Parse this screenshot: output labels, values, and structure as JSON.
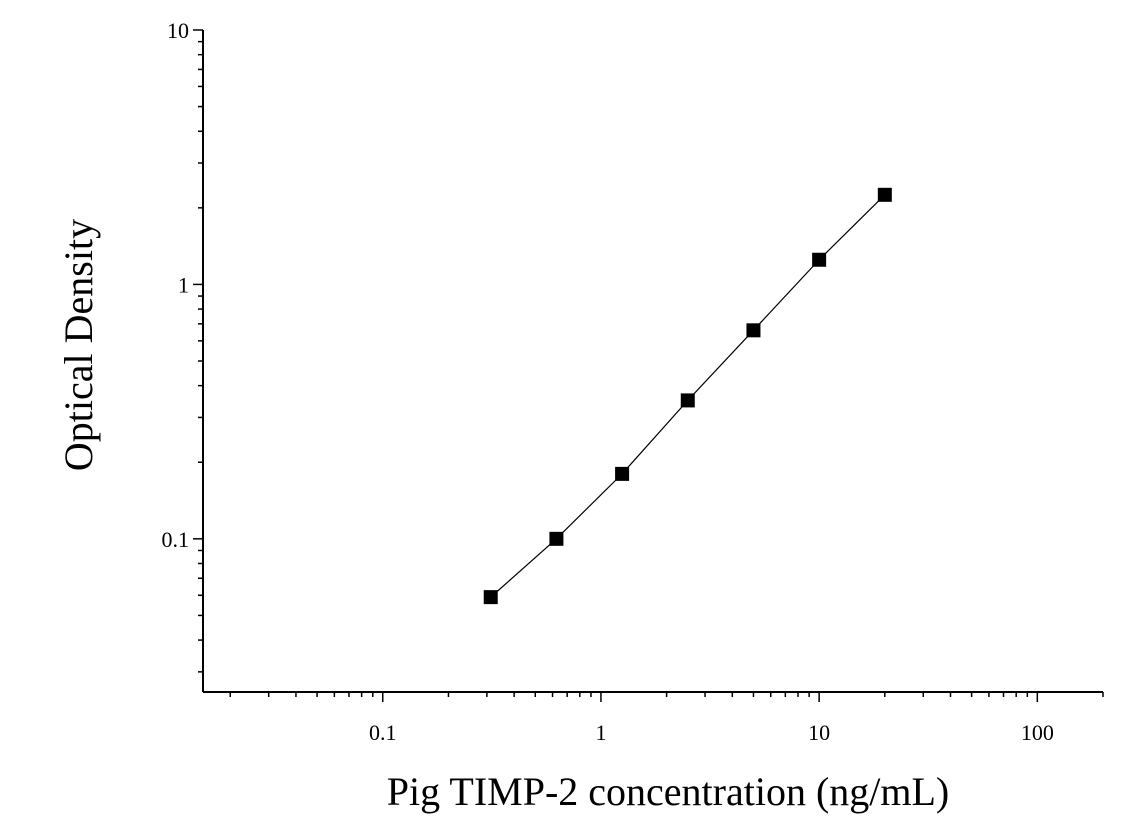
{
  "chart_data": {
    "type": "scatter",
    "title": "",
    "xlabel": "Pig TIMP-2 concentration (ng/mL)",
    "ylabel": "Optical Density",
    "xscale": "log",
    "yscale": "log",
    "xlim": [
      0.015,
      200
    ],
    "ylim": [
      0.025,
      10
    ],
    "x_ticks": [
      0.1,
      1,
      10,
      100
    ],
    "x_tick_labels": [
      "0.1",
      "1",
      "10",
      "100"
    ],
    "y_ticks": [
      0.1,
      1,
      10
    ],
    "y_tick_labels": [
      "0.1",
      "1",
      "10"
    ],
    "grid": false,
    "legend": "none",
    "series": [
      {
        "marker": "square",
        "fit_line": true,
        "color": "#000000",
        "points": [
          {
            "x": 0.3125,
            "y": 0.059
          },
          {
            "x": 0.625,
            "y": 0.1
          },
          {
            "x": 1.25,
            "y": 0.18
          },
          {
            "x": 2.5,
            "y": 0.35
          },
          {
            "x": 5,
            "y": 0.66
          },
          {
            "x": 10,
            "y": 1.25
          },
          {
            "x": 20,
            "y": 2.25
          }
        ]
      }
    ]
  }
}
